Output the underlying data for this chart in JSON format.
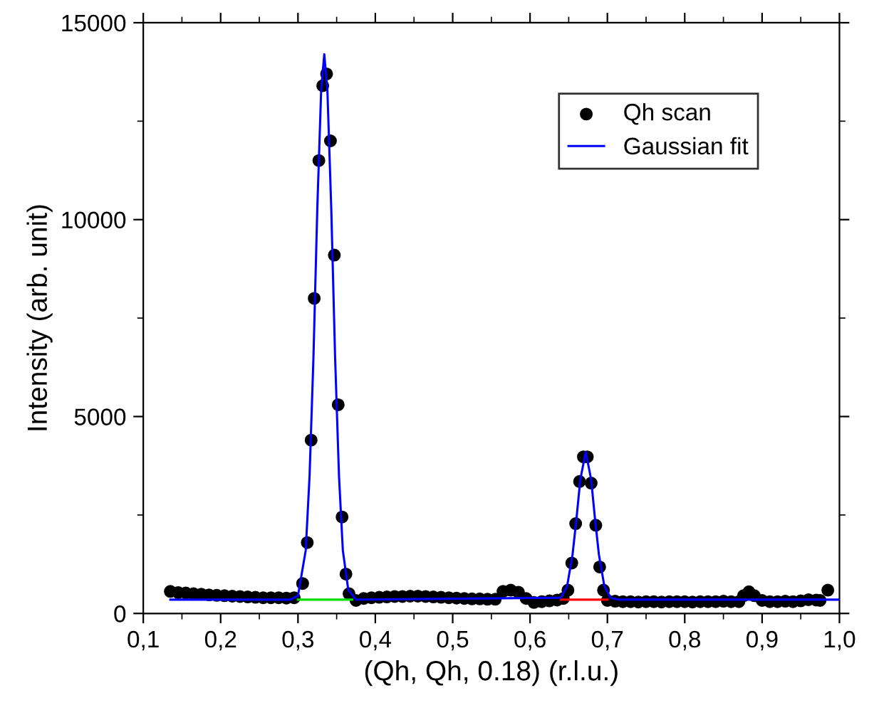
{
  "chart_data": {
    "type": "scatter",
    "xlabel": "(Qh, Qh, 0.18) (r.l.u.)",
    "ylabel": "Intensity (arb. unit)",
    "xlim": [
      0.1,
      1.0
    ],
    "ylim": [
      0,
      15000
    ],
    "xticks": [
      {
        "value": 0.1,
        "label": "0,1"
      },
      {
        "value": 0.2,
        "label": "0,2"
      },
      {
        "value": 0.3,
        "label": "0,3"
      },
      {
        "value": 0.4,
        "label": "0,4"
      },
      {
        "value": 0.5,
        "label": "0,5"
      },
      {
        "value": 0.6,
        "label": "0,6"
      },
      {
        "value": 0.7,
        "label": "0,7"
      },
      {
        "value": 0.8,
        "label": "0,8"
      },
      {
        "value": 0.9,
        "label": "0,9"
      },
      {
        "value": 1.0,
        "label": "1,0"
      }
    ],
    "yticks": [
      0,
      5000,
      10000,
      15000
    ],
    "grid": false,
    "legend": "top right",
    "series": [
      {
        "type": "line",
        "color": "#00dd00",
        "x": [
          0.3,
          0.37
        ],
        "values": [
          350,
          350
        ]
      },
      {
        "type": "line",
        "color": "#ff0000",
        "x": [
          0.64,
          0.7
        ],
        "values": [
          350,
          350
        ]
      },
      {
        "name": "Qh scan",
        "marker": "circle",
        "color": "#000000",
        "x": [
          0.135,
          0.145,
          0.155,
          0.165,
          0.175,
          0.185,
          0.195,
          0.205,
          0.215,
          0.225,
          0.235,
          0.245,
          0.255,
          0.265,
          0.275,
          0.285,
          0.295,
          0.306,
          0.312,
          0.317,
          0.321,
          0.327,
          0.332,
          0.337,
          0.342,
          0.347,
          0.352,
          0.357,
          0.362,
          0.366,
          0.375,
          0.385,
          0.395,
          0.405,
          0.415,
          0.425,
          0.435,
          0.445,
          0.455,
          0.465,
          0.475,
          0.485,
          0.495,
          0.505,
          0.515,
          0.525,
          0.535,
          0.545,
          0.555,
          0.565,
          0.575,
          0.585,
          0.595,
          0.605,
          0.615,
          0.625,
          0.635,
          0.643,
          0.649,
          0.654,
          0.659,
          0.664,
          0.669,
          0.674,
          0.679,
          0.685,
          0.69,
          0.695,
          0.7,
          0.71,
          0.72,
          0.73,
          0.74,
          0.75,
          0.76,
          0.77,
          0.78,
          0.79,
          0.8,
          0.81,
          0.82,
          0.83,
          0.84,
          0.85,
          0.86,
          0.87,
          0.876,
          0.883,
          0.89,
          0.9,
          0.91,
          0.92,
          0.93,
          0.94,
          0.95,
          0.96,
          0.97,
          0.975,
          0.985
        ],
        "values": [
          560,
          530,
          520,
          500,
          490,
          470,
          460,
          450,
          440,
          430,
          420,
          410,
          400,
          400,
          400,
          390,
          400,
          760,
          1800,
          4400,
          8000,
          11500,
          13400,
          13700,
          12000,
          9100,
          5300,
          2450,
          1000,
          500,
          330,
          380,
          400,
          410,
          420,
          430,
          430,
          440,
          440,
          430,
          420,
          410,
          400,
          390,
          380,
          370,
          370,
          360,
          360,
          560,
          590,
          540,
          380,
          280,
          300,
          320,
          340,
          380,
          590,
          1280,
          2280,
          3350,
          3975,
          3975,
          3310,
          2240,
          1180,
          590,
          330,
          310,
          300,
          300,
          290,
          300,
          300,
          290,
          300,
          300,
          300,
          290,
          300,
          300,
          300,
          310,
          300,
          300,
          450,
          550,
          450,
          330,
          300,
          300,
          310,
          300,
          320,
          350,
          340,
          330,
          590
        ]
      },
      {
        "name": "Gaussian fit",
        "type": "line",
        "marker": "none",
        "color": "#0000ff",
        "x": [
          0.135,
          0.29,
          0.3,
          0.31,
          0.315,
          0.32,
          0.325,
          0.33,
          0.334,
          0.338,
          0.343,
          0.348,
          0.353,
          0.358,
          0.365,
          0.375,
          0.64,
          0.648,
          0.655,
          0.66,
          0.665,
          0.672,
          0.679,
          0.684,
          0.689,
          0.696,
          0.704,
          0.715,
          1.0
        ],
        "values": [
          350,
          350,
          450,
          1600,
          3500,
          6500,
          10300,
          13300,
          14200,
          13300,
          10300,
          6500,
          3500,
          1600,
          600,
          350,
          400,
          700,
          1500,
          2400,
          3400,
          4100,
          3400,
          2400,
          1500,
          700,
          400,
          350,
          350
        ]
      }
    ]
  }
}
